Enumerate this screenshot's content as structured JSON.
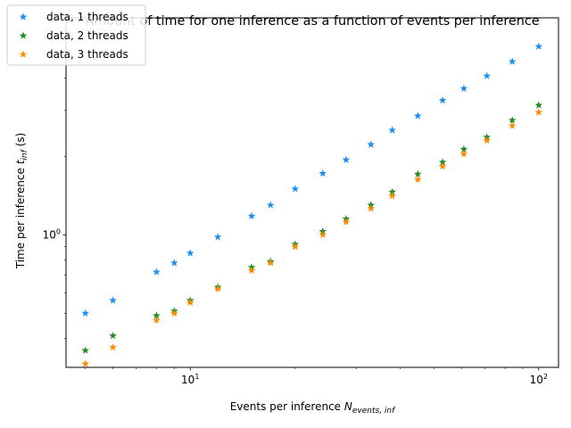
{
  "chart_data": {
    "type": "scatter",
    "title": "Amount of time for one inference as a function of events per inference",
    "xlabel": "Events per inference N_{events,inf}",
    "ylabel": "Time per inference t_{inf} (s)",
    "x_scale": "log",
    "y_scale": "log",
    "xlim": [
      4.4,
      114
    ],
    "ylim": [
      0.31,
      6.8
    ],
    "grid": false,
    "legend_position": "top-left",
    "x_tick_labels": [
      {
        "value": 10,
        "base": "10",
        "exp": "1"
      },
      {
        "value": 100,
        "base": "10",
        "exp": "2"
      }
    ],
    "y_tick_labels": [
      {
        "value": 1,
        "base": "10",
        "exp": "0"
      }
    ],
    "x": [
      5,
      6,
      8,
      9,
      10,
      12,
      15,
      17,
      20,
      24,
      28,
      33,
      38,
      45,
      53,
      61,
      71,
      84,
      100
    ],
    "series": [
      {
        "name": "data, 1 threads",
        "color": "#1f8ef1",
        "marker": "star",
        "values": [
          0.5,
          0.56,
          0.72,
          0.78,
          0.85,
          0.98,
          1.18,
          1.3,
          1.5,
          1.72,
          1.94,
          2.22,
          2.52,
          2.86,
          3.28,
          3.64,
          4.07,
          4.62,
          5.28
        ]
      },
      {
        "name": "data, 2 threads",
        "color": "#228b22",
        "marker": "star",
        "values": [
          0.36,
          0.41,
          0.49,
          0.51,
          0.56,
          0.63,
          0.75,
          0.79,
          0.92,
          1.03,
          1.15,
          1.3,
          1.46,
          1.71,
          1.9,
          2.13,
          2.37,
          2.75,
          3.14
        ]
      },
      {
        "name": "data, 3 threads",
        "color": "#ff8c00",
        "marker": "star",
        "values": [
          0.32,
          0.37,
          0.47,
          0.5,
          0.55,
          0.62,
          0.73,
          0.78,
          0.9,
          1.0,
          1.12,
          1.26,
          1.41,
          1.63,
          1.83,
          2.04,
          2.3,
          2.62,
          2.95
        ]
      }
    ]
  }
}
